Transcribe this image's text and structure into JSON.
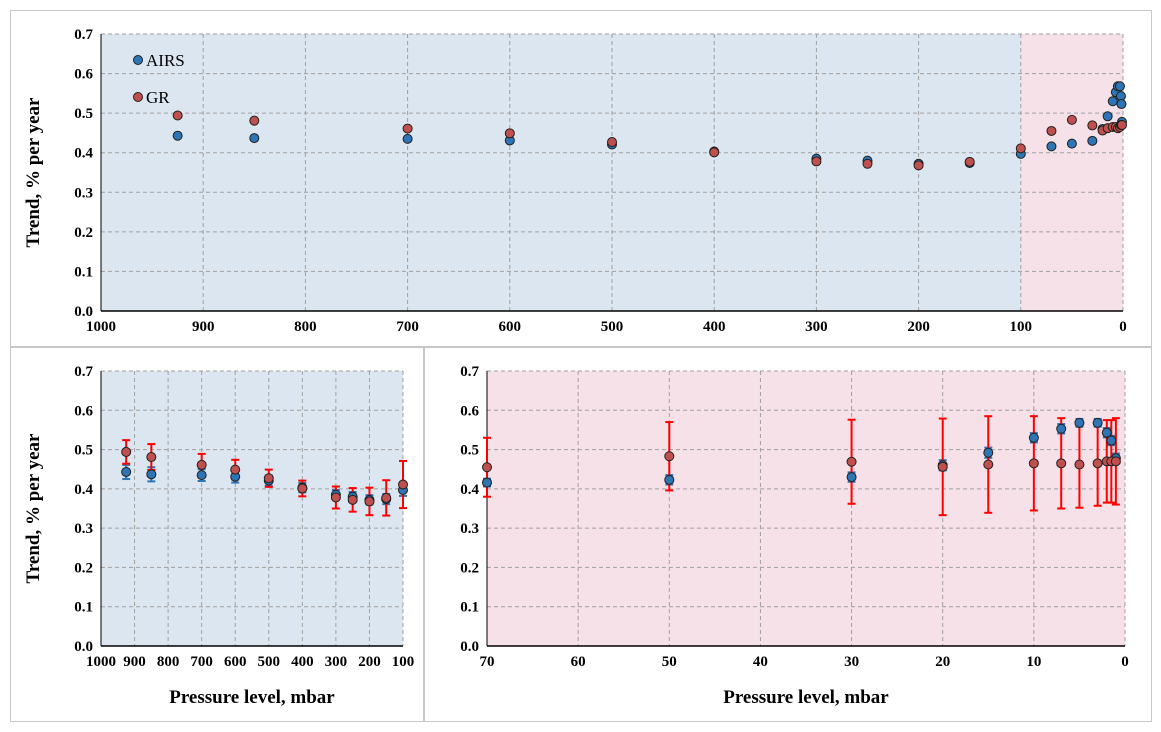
{
  "colors": {
    "airs": "#2e75b6",
    "gr": "#c0504d",
    "error_airs": "#2e75b6",
    "error_gr": "#ff0000",
    "trop_bg": "#dce6f1",
    "strat_bg": "#f7e1e8",
    "grid": "#a0a0a0",
    "marker_edge": "#1f1f1f"
  },
  "chart_data": [
    {
      "type": "scatter",
      "ylabel": "Trend, % per year",
      "xlabel": "",
      "xlim": [
        1000,
        0
      ],
      "ylim": [
        0.0,
        0.7
      ],
      "x_ticks": [
        "1000",
        "900",
        "800",
        "700",
        "600",
        "500",
        "400",
        "300",
        "200",
        "100",
        "0"
      ],
      "y_ticks": [
        "0.0",
        "0.1",
        "0.2",
        "0.3",
        "0.4",
        "0.5",
        "0.6",
        "0.7"
      ],
      "shaded_regions": [
        {
          "from": 1000,
          "to": 100,
          "color_key": "trop_bg"
        },
        {
          "from": 100,
          "to": 0,
          "color_key": "strat_bg"
        }
      ],
      "legend_position": "top-left",
      "grid": true,
      "series": [
        {
          "name": "AIRS",
          "x": [
            925,
            850,
            700,
            600,
            500,
            400,
            300,
            250,
            200,
            150,
            100,
            70,
            50,
            30,
            20,
            15,
            10,
            7,
            5,
            3,
            2,
            1.5,
            1
          ],
          "y": [
            0.443,
            0.437,
            0.435,
            0.431,
            0.421,
            0.403,
            0.385,
            0.38,
            0.372,
            0.374,
            0.397,
            0.416,
            0.423,
            0.43,
            0.46,
            0.492,
            0.53,
            0.553,
            0.568,
            0.568,
            0.543,
            0.523,
            0.478
          ]
        },
        {
          "name": "GR",
          "x": [
            925,
            850,
            700,
            600,
            500,
            400,
            300,
            250,
            200,
            150,
            100,
            70,
            50,
            30,
            20,
            15,
            10,
            7,
            5,
            3,
            2,
            1.5,
            1
          ],
          "y": [
            0.494,
            0.481,
            0.461,
            0.449,
            0.427,
            0.401,
            0.378,
            0.372,
            0.368,
            0.377,
            0.411,
            0.455,
            0.483,
            0.469,
            0.456,
            0.462,
            0.465,
            0.465,
            0.462,
            0.465,
            0.47,
            0.47,
            0.47
          ]
        }
      ]
    },
    {
      "type": "scatter",
      "ylabel": "Trend, % per year",
      "xlabel": "Pressure level, mbar",
      "xlim": [
        1000,
        100
      ],
      "ylim": [
        0.0,
        0.7
      ],
      "x_ticks": [
        "1000",
        "900",
        "800",
        "700",
        "600",
        "500",
        "400",
        "300",
        "200",
        "100"
      ],
      "y_ticks": [
        "0.0",
        "0.1",
        "0.2",
        "0.3",
        "0.4",
        "0.5",
        "0.6",
        "0.7"
      ],
      "background": "trop_bg",
      "grid": true,
      "series": [
        {
          "name": "AIRS",
          "x": [
            925,
            850,
            700,
            600,
            500,
            400,
            300,
            250,
            200,
            150,
            100
          ],
          "y": [
            0.443,
            0.437,
            0.435,
            0.431,
            0.421,
            0.403,
            0.385,
            0.38,
            0.372,
            0.374,
            0.397
          ],
          "error": [
            0.018,
            0.018,
            0.015,
            0.015,
            0.013,
            0.012,
            0.012,
            0.012,
            0.012,
            0.013,
            0.015
          ]
        },
        {
          "name": "GR",
          "x": [
            925,
            850,
            700,
            600,
            500,
            400,
            300,
            250,
            200,
            150,
            100
          ],
          "y": [
            0.494,
            0.481,
            0.461,
            0.449,
            0.427,
            0.401,
            0.378,
            0.372,
            0.368,
            0.377,
            0.411
          ],
          "error": [
            0.03,
            0.033,
            0.028,
            0.025,
            0.022,
            0.02,
            0.028,
            0.03,
            0.035,
            0.045,
            0.06
          ]
        }
      ]
    },
    {
      "type": "scatter",
      "ylabel": "",
      "xlabel": "Pressure level, mbar",
      "xlim": [
        70,
        0
      ],
      "ylim": [
        0.0,
        0.7
      ],
      "x_ticks": [
        "70",
        "60",
        "50",
        "40",
        "30",
        "20",
        "10",
        "0"
      ],
      "y_ticks": [
        "0.0",
        "0.1",
        "0.2",
        "0.3",
        "0.4",
        "0.5",
        "0.6",
        "0.7"
      ],
      "background": "strat_bg",
      "grid": true,
      "series": [
        {
          "name": "AIRS",
          "x": [
            70,
            50,
            30,
            20,
            15,
            10,
            7,
            5,
            3,
            2,
            1.5,
            1
          ],
          "y": [
            0.416,
            0.423,
            0.43,
            0.46,
            0.492,
            0.53,
            0.553,
            0.568,
            0.568,
            0.543,
            0.523,
            0.478
          ],
          "error": [
            0.01,
            0.012,
            0.012,
            0.013,
            0.013,
            0.012,
            0.012,
            0.01,
            0.01,
            0.012,
            0.012,
            0.012
          ]
        },
        {
          "name": "GR",
          "x": [
            70,
            50,
            30,
            20,
            15,
            10,
            7,
            5,
            3,
            2,
            1.5,
            1
          ],
          "y": [
            0.455,
            0.483,
            0.469,
            0.456,
            0.462,
            0.465,
            0.465,
            0.462,
            0.465,
            0.47,
            0.47,
            0.47
          ],
          "error": [
            0.075,
            0.087,
            0.107,
            0.123,
            0.123,
            0.12,
            0.115,
            0.11,
            0.108,
            0.105,
            0.105,
            0.11
          ]
        }
      ]
    }
  ]
}
